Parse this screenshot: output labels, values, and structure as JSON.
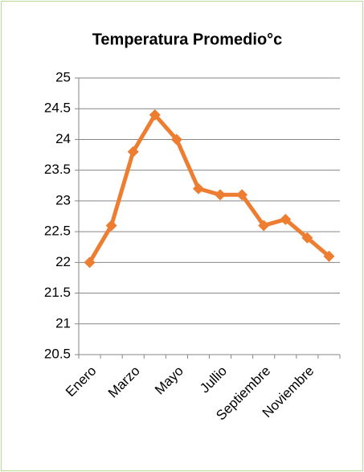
{
  "chart_data": {
    "type": "line",
    "title": "Temperatura Promedio°c",
    "categories": [
      "Enero",
      null,
      "Marzo",
      null,
      "Mayo",
      null,
      "Jullio",
      null,
      "Septiembre",
      null,
      "Noviembre",
      null
    ],
    "series": [
      {
        "name": "Temperatura Promedio°c",
        "color": "#ed7d31",
        "values": [
          22,
          22.6,
          23.8,
          24.4,
          24.0,
          23.2,
          23.1,
          23.1,
          22.6,
          22.7,
          22.4,
          22.1
        ]
      }
    ],
    "ylim": [
      20.5,
      25
    ],
    "yticks": [
      20.5,
      21,
      21.5,
      22,
      22.5,
      23,
      23.5,
      24,
      24.5,
      25
    ],
    "grid": true,
    "legend": false
  }
}
